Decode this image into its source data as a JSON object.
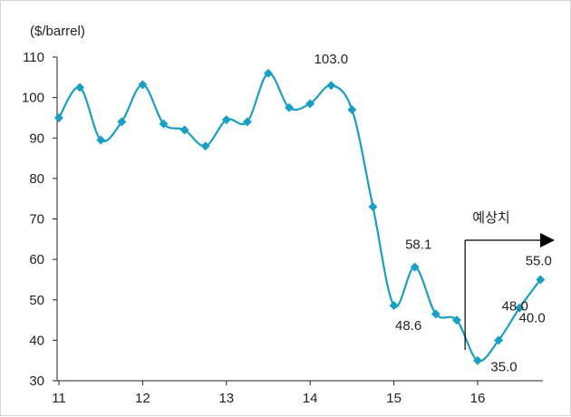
{
  "chart_data": {
    "type": "line",
    "title": "",
    "xlabel": "",
    "ylabel": "($/barrel)",
    "ylim": [
      30,
      110
    ],
    "yticks": [
      "30",
      "40",
      "50",
      "60",
      "70",
      "80",
      "90",
      "100",
      "110"
    ],
    "xlim": [
      11,
      16.75
    ],
    "xticks": [
      "11",
      "12",
      "13",
      "14",
      "15",
      "16"
    ],
    "grid": false,
    "line_color": "#1a9fc4",
    "series": [
      {
        "x": [
          11.0,
          11.25,
          11.5,
          11.75,
          12.0,
          12.25,
          12.5,
          12.75,
          13.0,
          13.25,
          13.5,
          13.75,
          14.0,
          14.25,
          14.5,
          14.75,
          15.0,
          15.25,
          15.5,
          15.75,
          16.0,
          16.25,
          16.5,
          16.75
        ],
        "values": [
          95.0,
          102.5,
          89.5,
          94.0,
          103.2,
          93.5,
          92.0,
          88.0,
          94.5,
          94.0,
          106.0,
          97.5,
          98.5,
          103.0,
          97.0,
          73.0,
          48.6,
          58.1,
          46.5,
          45.0,
          35.0,
          40.0,
          48.0,
          55.0
        ]
      }
    ],
    "data_labels": [
      {
        "x": 14.25,
        "text": "103.0"
      },
      {
        "x": 15.0,
        "text": "48.6"
      },
      {
        "x": 15.25,
        "text": "58.1"
      },
      {
        "x": 16.0,
        "text": "35.0"
      },
      {
        "x": 16.25,
        "text": "40.0"
      },
      {
        "x": 16.5,
        "text": "48.0"
      },
      {
        "x": 16.75,
        "text": "55.0"
      }
    ],
    "annotation": {
      "text": "예상치",
      "from_x": 15.85
    }
  }
}
